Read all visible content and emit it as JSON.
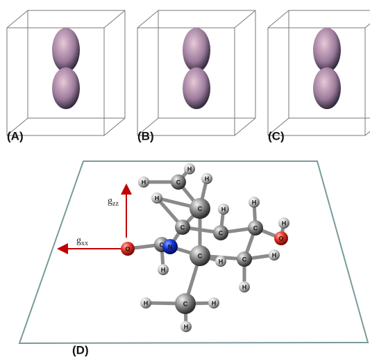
{
  "panels": [
    {
      "label": "(A)"
    },
    {
      "label": "(B)"
    },
    {
      "label": "(C)"
    }
  ],
  "panel_d": {
    "label": "(D)",
    "axes": {
      "zz": {
        "base": "g",
        "sub": "zz"
      },
      "xx": {
        "base": "g",
        "sub": "xx"
      }
    },
    "atoms": [
      "H",
      "H",
      "C",
      "H",
      "H",
      "C",
      "H",
      "H",
      "C",
      "C",
      "H",
      "C",
      "O",
      "O",
      "C",
      "N",
      "H",
      "C",
      "H",
      "C",
      "H",
      "H",
      "C",
      "H",
      "H",
      "H"
    ]
  }
}
